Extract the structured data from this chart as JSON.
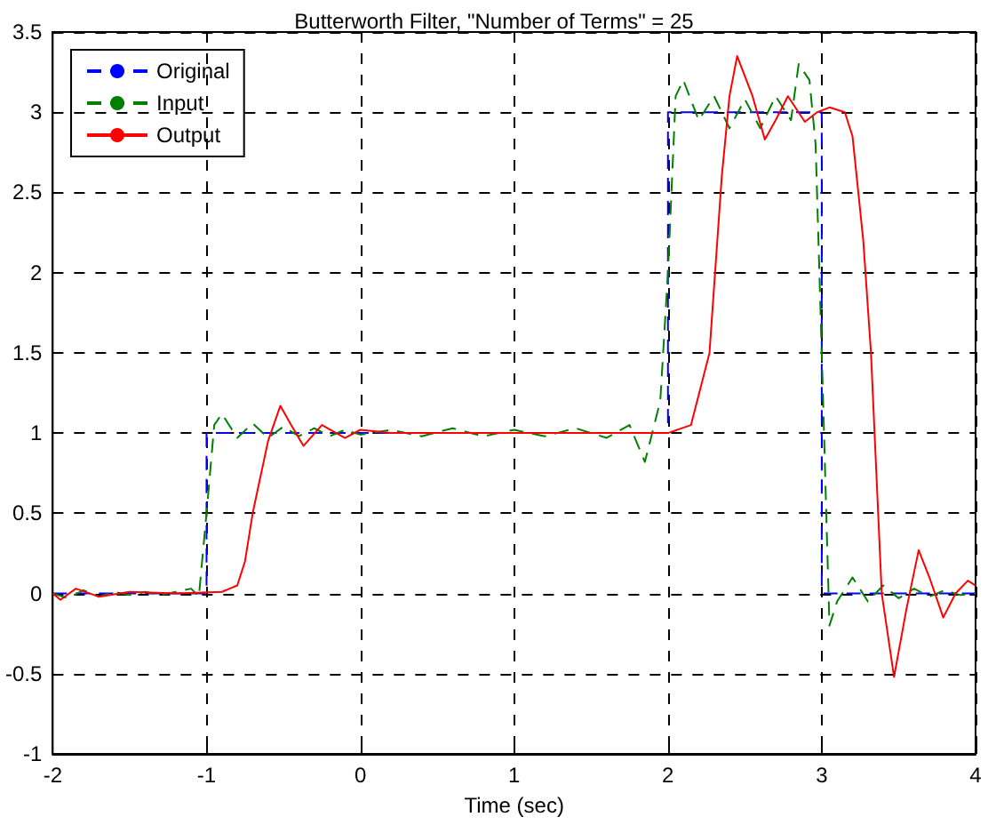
{
  "chart_data": {
    "type": "line",
    "title": "Butterworth Filter, \"Number of Terms\" = 25",
    "xlabel": "Time (sec)",
    "xlim": [
      -2,
      4
    ],
    "xticks": [
      -2,
      -1,
      0,
      1,
      2,
      3,
      4
    ],
    "ylim": [
      -1,
      3.5
    ],
    "yticks": [
      -1,
      -0.5,
      0,
      0.5,
      1,
      1.5,
      2,
      2.5,
      3,
      3.5
    ],
    "grid": true,
    "legend": "top left",
    "marker": "none",
    "series": [
      {
        "name": "Original",
        "color": "#0000ff",
        "line_style": "dashed",
        "x": [
          -2,
          -1,
          -1,
          2,
          2,
          3,
          3,
          4
        ],
        "values": [
          0,
          0,
          1,
          1,
          3,
          3,
          0,
          0
        ]
      },
      {
        "name": "Input",
        "color": "#008000",
        "line_style": "dashed",
        "x": [
          -2,
          -1.9,
          -1.8,
          -1.7,
          -1.6,
          -1.5,
          -1.4,
          -1.3,
          -1.2,
          -1.1,
          -1.05,
          -1.0,
          -0.95,
          -0.9,
          -0.8,
          -0.7,
          -0.6,
          -0.5,
          -0.4,
          -0.3,
          -0.2,
          -0.1,
          0,
          0.2,
          0.4,
          0.6,
          0.8,
          1.0,
          1.2,
          1.4,
          1.6,
          1.75,
          1.85,
          1.95,
          2.0,
          2.05,
          2.1,
          2.2,
          2.3,
          2.4,
          2.5,
          2.6,
          2.7,
          2.8,
          2.85,
          2.92,
          2.96,
          3.0,
          3.05,
          3.1,
          3.2,
          3.3,
          3.4,
          3.5,
          3.6,
          3.7,
          3.8,
          3.9,
          4
        ],
        "values": [
          0,
          -0.03,
          0.02,
          -0.02,
          0.01,
          -0.01,
          0.01,
          -0.01,
          0.01,
          0.03,
          -0.02,
          0.5,
          1.05,
          1.12,
          0.97,
          1.06,
          0.97,
          1.04,
          0.98,
          1.03,
          0.98,
          1.02,
          0.99,
          1.02,
          0.98,
          1.03,
          0.98,
          1.02,
          0.98,
          1.03,
          0.97,
          1.05,
          0.82,
          1.2,
          2.0,
          3.1,
          3.2,
          2.95,
          3.1,
          2.9,
          3.08,
          2.9,
          3.1,
          2.95,
          3.3,
          3.2,
          2.8,
          1.5,
          -0.2,
          -0.05,
          0.1,
          -0.05,
          0.05,
          -0.03,
          0.03,
          -0.02,
          0.02,
          -0.01,
          0
        ]
      },
      {
        "name": "Output",
        "color": "#ff0000",
        "line_style": "solid",
        "x": [
          -2,
          -1.95,
          -1.85,
          -1.7,
          -1.5,
          -1.2,
          -0.9,
          -0.8,
          -0.75,
          -0.7,
          -0.6,
          -0.52,
          -0.45,
          -0.37,
          -0.25,
          -0.1,
          0,
          0.2,
          0.5,
          1.0,
          1.5,
          2.0,
          2.15,
          2.27,
          2.35,
          2.4,
          2.45,
          2.55,
          2.63,
          2.7,
          2.78,
          2.89,
          2.97,
          3.05,
          3.15,
          3.2,
          3.27,
          3.32,
          3.39,
          3.47,
          3.55,
          3.63,
          3.7,
          3.79,
          3.87,
          3.95,
          4
        ],
        "values": [
          0,
          -0.04,
          0.03,
          -0.02,
          0.01,
          0,
          0.01,
          0.05,
          0.2,
          0.5,
          0.95,
          1.17,
          1.05,
          0.92,
          1.05,
          0.97,
          1.02,
          1.0,
          1.0,
          1.0,
          1.0,
          1.0,
          1.05,
          1.5,
          2.6,
          3.1,
          3.35,
          3.1,
          2.83,
          2.95,
          3.1,
          2.94,
          3.0,
          3.03,
          3.0,
          2.85,
          2.2,
          1.5,
          0,
          -0.52,
          -0.1,
          0.27,
          0.1,
          -0.15,
          0.0,
          0.08,
          0.05
        ]
      }
    ]
  }
}
